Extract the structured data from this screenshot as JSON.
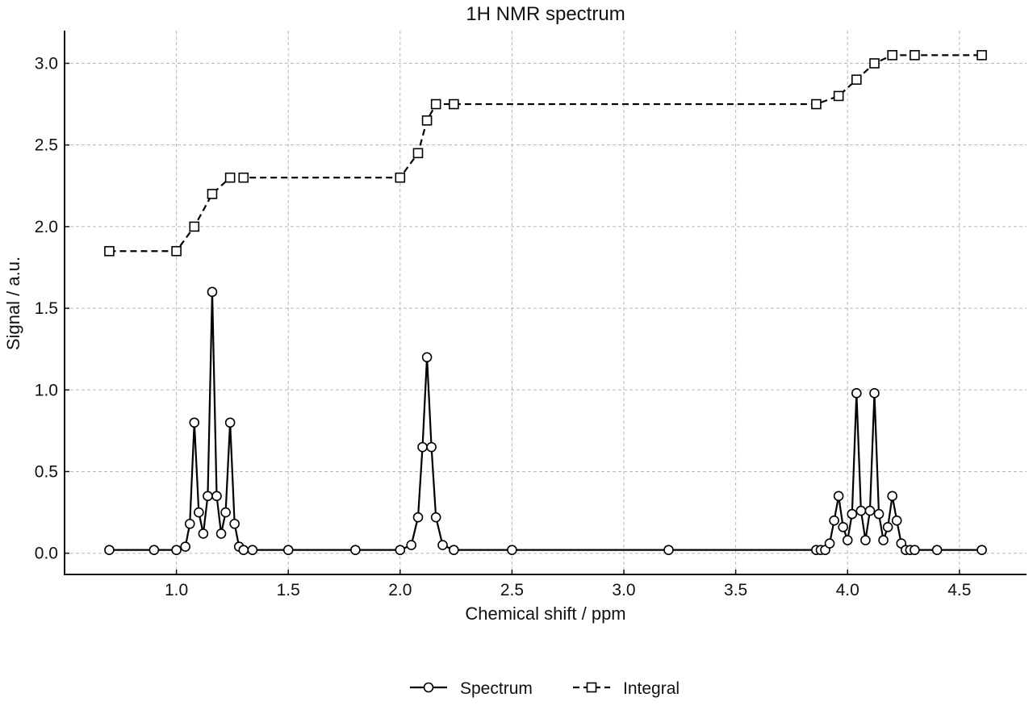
{
  "chart_data": {
    "type": "line",
    "title": "1H NMR spectrum",
    "xlabel": "Chemical shift / ppm",
    "ylabel": "Signal / a.u.",
    "xlim": [
      0.5,
      4.8
    ],
    "ylim": [
      -0.13,
      3.2
    ],
    "x_ticks": [
      1.0,
      1.5,
      2.0,
      2.5,
      3.0,
      3.5,
      4.0,
      4.5
    ],
    "y_ticks": [
      0.0,
      0.5,
      1.0,
      1.5,
      2.0,
      2.5,
      3.0
    ],
    "x_tick_labels": [
      "1.0",
      "1.5",
      "2.0",
      "2.5",
      "3.0",
      "3.5",
      "4.0",
      "4.5"
    ],
    "y_tick_labels": [
      "0.0",
      "0.5",
      "1.0",
      "1.5",
      "2.0",
      "2.5",
      "3.0"
    ],
    "grid": true,
    "legend_position": "bottom-center",
    "series": [
      {
        "name": "Spectrum",
        "color": "#000000",
        "line_style": "solid",
        "marker": "circle",
        "points": [
          [
            0.7,
            0.02
          ],
          [
            0.9,
            0.02
          ],
          [
            1.0,
            0.02
          ],
          [
            1.04,
            0.04
          ],
          [
            1.06,
            0.18
          ],
          [
            1.08,
            0.8
          ],
          [
            1.1,
            0.25
          ],
          [
            1.12,
            0.12
          ],
          [
            1.14,
            0.35
          ],
          [
            1.16,
            1.6
          ],
          [
            1.18,
            0.35
          ],
          [
            1.2,
            0.12
          ],
          [
            1.22,
            0.25
          ],
          [
            1.24,
            0.8
          ],
          [
            1.26,
            0.18
          ],
          [
            1.28,
            0.04
          ],
          [
            1.3,
            0.02
          ],
          [
            1.34,
            0.02
          ],
          [
            1.5,
            0.02
          ],
          [
            1.8,
            0.02
          ],
          [
            2.0,
            0.02
          ],
          [
            2.05,
            0.05
          ],
          [
            2.08,
            0.22
          ],
          [
            2.1,
            0.65
          ],
          [
            2.12,
            1.2
          ],
          [
            2.14,
            0.65
          ],
          [
            2.16,
            0.22
          ],
          [
            2.19,
            0.05
          ],
          [
            2.24,
            0.02
          ],
          [
            2.5,
            0.02
          ],
          [
            3.2,
            0.02
          ],
          [
            3.86,
            0.02
          ],
          [
            3.88,
            0.02
          ],
          [
            3.9,
            0.02
          ],
          [
            3.92,
            0.06
          ],
          [
            3.94,
            0.2
          ],
          [
            3.96,
            0.35
          ],
          [
            3.98,
            0.16
          ],
          [
            4.0,
            0.08
          ],
          [
            4.02,
            0.24
          ],
          [
            4.04,
            0.98
          ],
          [
            4.06,
            0.26
          ],
          [
            4.08,
            0.08
          ],
          [
            4.1,
            0.26
          ],
          [
            4.12,
            0.98
          ],
          [
            4.14,
            0.24
          ],
          [
            4.16,
            0.08
          ],
          [
            4.18,
            0.16
          ],
          [
            4.2,
            0.35
          ],
          [
            4.22,
            0.2
          ],
          [
            4.24,
            0.06
          ],
          [
            4.26,
            0.02
          ],
          [
            4.28,
            0.02
          ],
          [
            4.3,
            0.02
          ],
          [
            4.4,
            0.02
          ],
          [
            4.6,
            0.02
          ]
        ]
      },
      {
        "name": "Integral",
        "color": "#000000",
        "line_style": "dashed",
        "marker": "square",
        "points": [
          [
            0.7,
            1.85
          ],
          [
            1.0,
            1.85
          ],
          [
            1.08,
            2.0
          ],
          [
            1.16,
            2.2
          ],
          [
            1.24,
            2.3
          ],
          [
            1.3,
            2.3
          ],
          [
            2.0,
            2.3
          ],
          [
            2.08,
            2.45
          ],
          [
            2.12,
            2.65
          ],
          [
            2.16,
            2.75
          ],
          [
            2.24,
            2.75
          ],
          [
            3.86,
            2.75
          ],
          [
            3.96,
            2.8
          ],
          [
            4.04,
            2.9
          ],
          [
            4.12,
            3.0
          ],
          [
            4.2,
            3.05
          ],
          [
            4.3,
            3.05
          ],
          [
            4.6,
            3.05
          ]
        ]
      }
    ]
  }
}
